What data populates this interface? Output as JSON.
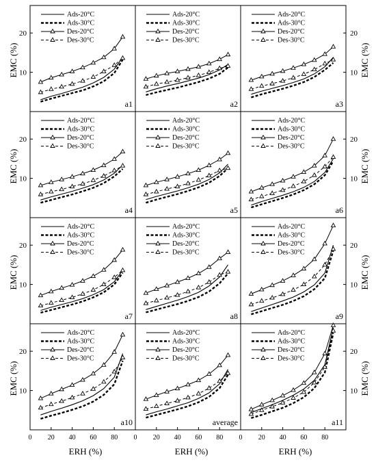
{
  "axes": {
    "xlabel": "ERH (%)",
    "ylabel": "EMC (%)",
    "xlim": [
      0,
      100
    ],
    "ylim": [
      0,
      27
    ],
    "xticks": [
      0,
      20,
      40,
      60,
      80
    ],
    "yticks": [
      10,
      20
    ]
  },
  "legend_labels": [
    "Ads-20°C",
    "Ads-30°C",
    "Des-20°C",
    "Des-30°C"
  ],
  "chart_data": [
    {
      "type": "line",
      "panel": "a1",
      "x": [
        10,
        20,
        30,
        40,
        50,
        60,
        70,
        80,
        88
      ],
      "series": [
        {
          "name": "Ads-20°C",
          "values": [
            3.0,
            3.9,
            4.6,
            5.4,
            6.2,
            7.3,
            8.7,
            10.8,
            13.8
          ]
        },
        {
          "name": "Ads-30°C",
          "values": [
            2.5,
            3.3,
            4.0,
            4.7,
            5.4,
            6.4,
            7.7,
            9.8,
            13.2
          ]
        },
        {
          "name": "Des-20°C",
          "values": [
            7.5,
            8.6,
            9.4,
            10.2,
            11.2,
            12.4,
            13.8,
            16.0,
            19.0
          ]
        },
        {
          "name": "Des-30°C",
          "values": [
            4.9,
            5.7,
            6.3,
            7.0,
            7.8,
            8.8,
            10.2,
            11.8,
            13.6
          ]
        }
      ]
    },
    {
      "type": "line",
      "panel": "a2",
      "x": [
        10,
        20,
        30,
        40,
        50,
        60,
        70,
        80,
        88
      ],
      "series": [
        {
          "name": "Ads-20°C",
          "values": [
            5.0,
            5.8,
            6.5,
            7.1,
            7.8,
            8.5,
            9.4,
            10.6,
            12.0
          ]
        },
        {
          "name": "Ads-30°C",
          "values": [
            4.2,
            4.9,
            5.5,
            6.1,
            6.8,
            7.5,
            8.4,
            9.6,
            11.2
          ]
        },
        {
          "name": "Des-20°C",
          "values": [
            8.3,
            9.1,
            9.7,
            10.2,
            10.8,
            11.4,
            12.2,
            13.3,
            14.5
          ]
        },
        {
          "name": "Des-30°C",
          "values": [
            6.3,
            7.0,
            7.5,
            8.0,
            8.6,
            9.2,
            10.0,
            11.0,
            11.6
          ]
        }
      ]
    },
    {
      "type": "line",
      "panel": "a3",
      "x": [
        10,
        20,
        30,
        40,
        50,
        60,
        70,
        80,
        88
      ],
      "series": [
        {
          "name": "Ads-20°C",
          "values": [
            4.4,
            5.2,
            5.9,
            6.6,
            7.4,
            8.3,
            9.6,
            11.4,
            13.8
          ]
        },
        {
          "name": "Ads-30°C",
          "values": [
            3.6,
            4.4,
            5.1,
            5.8,
            6.6,
            7.5,
            8.8,
            10.6,
            12.4
          ]
        },
        {
          "name": "Des-20°C",
          "values": [
            8.0,
            8.9,
            9.6,
            10.3,
            11.1,
            12.0,
            13.1,
            14.6,
            16.5
          ]
        },
        {
          "name": "Des-30°C",
          "values": [
            5.7,
            6.5,
            7.1,
            7.8,
            8.6,
            9.5,
            10.7,
            12.2,
            13.2
          ]
        }
      ]
    },
    {
      "type": "line",
      "panel": "a4",
      "x": [
        10,
        20,
        30,
        40,
        50,
        60,
        70,
        80,
        88
      ],
      "series": [
        {
          "name": "Ads-20°C",
          "values": [
            4.5,
            5.3,
            6.0,
            6.7,
            7.5,
            8.4,
            9.6,
            11.3,
            13.4
          ]
        },
        {
          "name": "Ads-30°C",
          "values": [
            3.8,
            4.5,
            5.2,
            5.9,
            6.7,
            7.6,
            8.8,
            10.5,
            12.4
          ]
        },
        {
          "name": "Des-20°C",
          "values": [
            8.2,
            9.0,
            9.7,
            10.4,
            11.2,
            12.1,
            13.3,
            14.9,
            16.8
          ]
        },
        {
          "name": "Des-30°C",
          "values": [
            5.9,
            6.6,
            7.2,
            7.9,
            8.6,
            9.5,
            10.6,
            12.0,
            13.2
          ]
        }
      ]
    },
    {
      "type": "line",
      "panel": "a5",
      "x": [
        10,
        20,
        30,
        40,
        50,
        60,
        70,
        80,
        88
      ],
      "series": [
        {
          "name": "Ads-20°C",
          "values": [
            4.6,
            5.4,
            6.1,
            6.8,
            7.6,
            8.5,
            9.7,
            11.4,
            13.6
          ]
        },
        {
          "name": "Ads-30°C",
          "values": [
            3.8,
            4.6,
            5.3,
            6.0,
            6.8,
            7.7,
            8.9,
            10.6,
            12.6
          ]
        },
        {
          "name": "Des-20°C",
          "values": [
            8.2,
            9.0,
            9.7,
            10.4,
            11.2,
            12.1,
            13.3,
            14.8,
            16.4
          ]
        },
        {
          "name": "Des-30°C",
          "values": [
            5.9,
            6.6,
            7.3,
            7.9,
            8.7,
            9.6,
            10.7,
            12.0,
            12.6
          ]
        }
      ]
    },
    {
      "type": "line",
      "panel": "a6",
      "x": [
        10,
        20,
        30,
        40,
        50,
        60,
        70,
        80,
        88
      ],
      "series": [
        {
          "name": "Ads-20°C",
          "values": [
            3.2,
            4.1,
            4.9,
            5.7,
            6.6,
            7.7,
            9.2,
            11.5,
            15.0
          ]
        },
        {
          "name": "Ads-30°C",
          "values": [
            2.6,
            3.4,
            4.2,
            5.0,
            5.9,
            7.0,
            8.5,
            10.8,
            14.4
          ]
        },
        {
          "name": "Des-20°C",
          "values": [
            6.6,
            7.6,
            8.5,
            9.4,
            10.4,
            11.6,
            13.2,
            15.8,
            20.0
          ]
        },
        {
          "name": "Des-30°C",
          "values": [
            4.6,
            5.4,
            6.2,
            7.0,
            8.0,
            9.2,
            10.8,
            13.0,
            15.4
          ]
        }
      ]
    },
    {
      "type": "line",
      "panel": "a7",
      "x": [
        10,
        20,
        30,
        40,
        50,
        60,
        70,
        80,
        88
      ],
      "series": [
        {
          "name": "Ads-20°C",
          "values": [
            3.4,
            4.2,
            4.9,
            5.6,
            6.4,
            7.4,
            8.7,
            10.7,
            13.6
          ]
        },
        {
          "name": "Ads-30°C",
          "values": [
            2.8,
            3.5,
            4.2,
            4.9,
            5.7,
            6.7,
            8.0,
            10.0,
            13.0
          ]
        },
        {
          "name": "Des-20°C",
          "values": [
            7.2,
            8.2,
            9.1,
            9.9,
            10.9,
            12.1,
            13.7,
            16.2,
            18.8
          ]
        },
        {
          "name": "Des-30°C",
          "values": [
            4.6,
            5.3,
            6.0,
            6.7,
            7.6,
            8.6,
            10.0,
            11.8,
            13.6
          ]
        }
      ]
    },
    {
      "type": "line",
      "panel": "a8",
      "x": [
        10,
        20,
        30,
        40,
        50,
        60,
        70,
        80,
        88
      ],
      "series": [
        {
          "name": "Ads-20°C",
          "values": [
            3.6,
            4.4,
            5.2,
            6.0,
            6.9,
            8.0,
            9.6,
            11.9,
            15.0
          ]
        },
        {
          "name": "Ads-30°C",
          "values": [
            2.9,
            3.6,
            4.3,
            5.0,
            5.8,
            6.8,
            8.2,
            10.3,
            12.8
          ]
        },
        {
          "name": "Des-20°C",
          "values": [
            7.8,
            8.8,
            9.7,
            10.6,
            11.6,
            12.8,
            14.4,
            16.6,
            18.2
          ]
        },
        {
          "name": "Des-30°C",
          "values": [
            5.2,
            5.9,
            6.6,
            7.3,
            8.2,
            9.2,
            10.6,
            12.4,
            13.2
          ]
        }
      ]
    },
    {
      "type": "line",
      "panel": "a9",
      "x": [
        10,
        20,
        30,
        40,
        50,
        60,
        70,
        80,
        88
      ],
      "series": [
        {
          "name": "Ads-20°C",
          "values": [
            3.1,
            4.0,
            4.9,
            5.8,
            6.8,
            8.1,
            9.9,
            12.9,
            20.0
          ]
        },
        {
          "name": "Ads-30°C",
          "values": [
            2.4,
            3.2,
            4.0,
            4.8,
            5.8,
            7.0,
            8.8,
            11.6,
            18.6
          ]
        },
        {
          "name": "Des-20°C",
          "values": [
            7.6,
            8.7,
            9.8,
            10.9,
            12.3,
            14.0,
            16.4,
            20.4,
            25.0
          ]
        },
        {
          "name": "Des-30°C",
          "values": [
            4.9,
            5.8,
            6.6,
            7.5,
            8.6,
            10.0,
            12.0,
            15.0,
            19.0
          ]
        }
      ]
    },
    {
      "type": "line",
      "panel": "a10",
      "x": [
        10,
        20,
        30,
        40,
        50,
        60,
        70,
        80,
        88
      ],
      "series": [
        {
          "name": "Ads-20°C",
          "values": [
            3.8,
            4.7,
            5.5,
            6.4,
            7.4,
            8.7,
            10.5,
            13.4,
            19.4
          ]
        },
        {
          "name": "Ads-30°C",
          "values": [
            2.8,
            3.6,
            4.3,
            5.1,
            6.0,
            7.2,
            8.9,
            11.6,
            17.6
          ]
        },
        {
          "name": "Des-20°C",
          "values": [
            8.0,
            9.2,
            10.3,
            11.4,
            12.7,
            14.3,
            16.5,
            19.8,
            24.2
          ]
        },
        {
          "name": "Des-30°C",
          "values": [
            5.6,
            6.5,
            7.3,
            8.2,
            9.2,
            10.4,
            12.2,
            14.8,
            18.4
          ]
        }
      ]
    },
    {
      "type": "line",
      "panel": "average",
      "x": [
        10,
        20,
        30,
        40,
        50,
        60,
        70,
        80,
        88
      ],
      "series": [
        {
          "name": "Ads-20°C",
          "values": [
            3.8,
            4.6,
            5.3,
            6.1,
            6.9,
            8.0,
            9.4,
            11.7,
            15.4
          ]
        },
        {
          "name": "Ads-30°C",
          "values": [
            3.1,
            3.8,
            4.5,
            5.2,
            6.0,
            7.0,
            8.4,
            10.6,
            14.0
          ]
        },
        {
          "name": "Des-20°C",
          "values": [
            7.8,
            8.8,
            9.7,
            10.5,
            11.5,
            12.6,
            14.2,
            16.4,
            19.0
          ]
        },
        {
          "name": "Des-30°C",
          "values": [
            5.3,
            6.0,
            6.7,
            7.4,
            8.2,
            9.2,
            10.6,
            12.4,
            14.4
          ]
        }
      ]
    },
    {
      "type": "line",
      "panel": "a11",
      "x": [
        10,
        20,
        30,
        40,
        50,
        60,
        70,
        80,
        88
      ],
      "series": [
        {
          "name": "Ads-20°C",
          "values": [
            4.4,
            5.4,
            6.4,
            7.5,
            8.8,
            10.4,
            12.6,
            16.6,
            26.0
          ]
        },
        {
          "name": "Ads-30°C",
          "values": [
            3.0,
            3.8,
            4.7,
            5.6,
            6.8,
            8.3,
            10.6,
            14.6,
            24.6
          ]
        },
        {
          "name": "Des-20°C",
          "values": [
            5.2,
            6.4,
            7.5,
            8.7,
            10.1,
            11.9,
            14.6,
            19.4,
            26.6
          ]
        },
        {
          "name": "Des-30°C",
          "values": [
            4.0,
            5.0,
            5.9,
            6.9,
            8.1,
            9.6,
            12.0,
            16.0,
            25.2
          ]
        }
      ]
    }
  ]
}
